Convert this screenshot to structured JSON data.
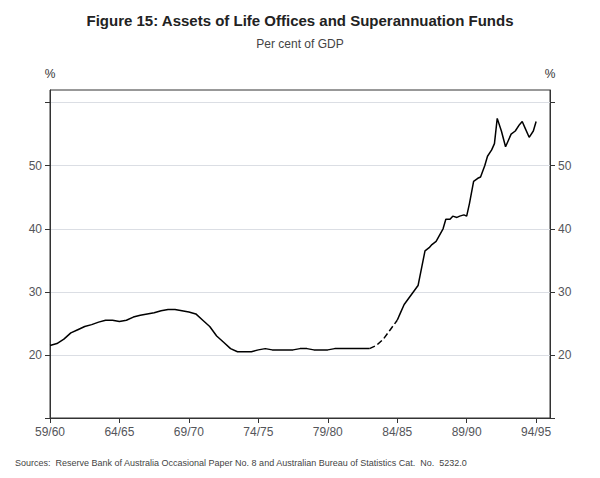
{
  "chart_data": {
    "type": "line",
    "title": "Figure 15: Assets of Life Offices and Superannuation Funds",
    "subtitle": "Per cent of GDP",
    "source": "Sources:  Reserve Bank of Australia Occasional Paper No. 8 and Australian Bureau of Statistics Cat.  No.  5232.0",
    "ylabel": "%",
    "y2label": "%",
    "xlim": [
      0,
      36
    ],
    "xticks": [
      {
        "value": 0,
        "label": "59/60"
      },
      {
        "value": 5,
        "label": "64/65"
      },
      {
        "value": 10,
        "label": "69/70"
      },
      {
        "value": 15,
        "label": "74/75"
      },
      {
        "value": 20,
        "label": "79/80"
      },
      {
        "value": 25,
        "label": "84/85"
      },
      {
        "value": 30,
        "label": "89/90"
      },
      {
        "value": 35,
        "label": "94/95"
      }
    ],
    "ylim": [
      10,
      62
    ],
    "yticks": [
      {
        "value": 10,
        "label": ""
      },
      20,
      30,
      40,
      50,
      {
        "value": 60,
        "label": ""
      }
    ],
    "y2lim": [
      10,
      62
    ],
    "y2ticks": [
      {
        "value": 10,
        "label": ""
      },
      20,
      30,
      40,
      50,
      {
        "value": 60,
        "label": ""
      }
    ],
    "grid": true,
    "color": "#000000",
    "series": [
      {
        "line_style": "solid",
        "x": [
          0,
          0.5,
          1,
          1.5,
          2,
          2.5,
          3,
          3.5,
          4,
          4.5,
          5,
          5.5,
          6,
          6.5,
          7,
          7.5,
          8,
          8.5,
          9,
          9.5,
          10,
          10.5,
          11,
          11.5,
          12,
          12.5,
          13,
          13.5,
          14,
          14.5,
          15,
          15.5,
          16,
          16.5,
          17,
          17.5,
          18,
          18.5,
          19,
          19.5,
          20,
          20.5,
          21,
          21.5,
          22,
          22.5,
          23
        ],
        "values": [
          21.5,
          21.8,
          22.5,
          23.5,
          24.0,
          24.5,
          24.8,
          25.2,
          25.5,
          25.5,
          25.3,
          25.5,
          26.0,
          26.3,
          26.5,
          26.7,
          27.0,
          27.2,
          27.2,
          27.0,
          26.8,
          26.5,
          25.5,
          24.5,
          23.0,
          22.0,
          21.0,
          20.5,
          20.5,
          20.5,
          20.8,
          21.0,
          20.8,
          20.8,
          20.8,
          20.8,
          21.0,
          21.0,
          20.8,
          20.8,
          20.8,
          21.0,
          21.0,
          21.0,
          21.0,
          21.0,
          21.0
        ]
      },
      {
        "line_style": "dashed",
        "x": [
          23,
          23.5,
          24,
          24.5,
          25
        ],
        "values": [
          21.0,
          21.5,
          22.5,
          24.0,
          25.5
        ]
      },
      {
        "line_style": "solid",
        "x": [
          25,
          25.2,
          25.5,
          26,
          26.5,
          27,
          27.3,
          27.5,
          27.8,
          28,
          28.3,
          28.5,
          28.8,
          29,
          29.3,
          29.5,
          29.8,
          30,
          30.2,
          30.5,
          30.8,
          31,
          31.3,
          31.5,
          31.8,
          32,
          32.2,
          32.5,
          32.8,
          33,
          33.2,
          33.5,
          33.8,
          34,
          34.2,
          34.5,
          34.8,
          35
        ],
        "values": [
          25.5,
          26.5,
          28.0,
          29.5,
          31.0,
          36.5,
          37.0,
          37.5,
          38.0,
          38.8,
          40.0,
          41.5,
          41.5,
          42.0,
          41.8,
          42.0,
          42.2,
          42.0,
          44.0,
          47.5,
          48.0,
          48.2,
          50.0,
          51.5,
          52.5,
          53.5,
          57.5,
          55.5,
          53.0,
          54.0,
          55.0,
          55.5,
          56.5,
          57.0,
          56.0,
          54.5,
          55.5,
          57.0
        ]
      }
    ]
  }
}
